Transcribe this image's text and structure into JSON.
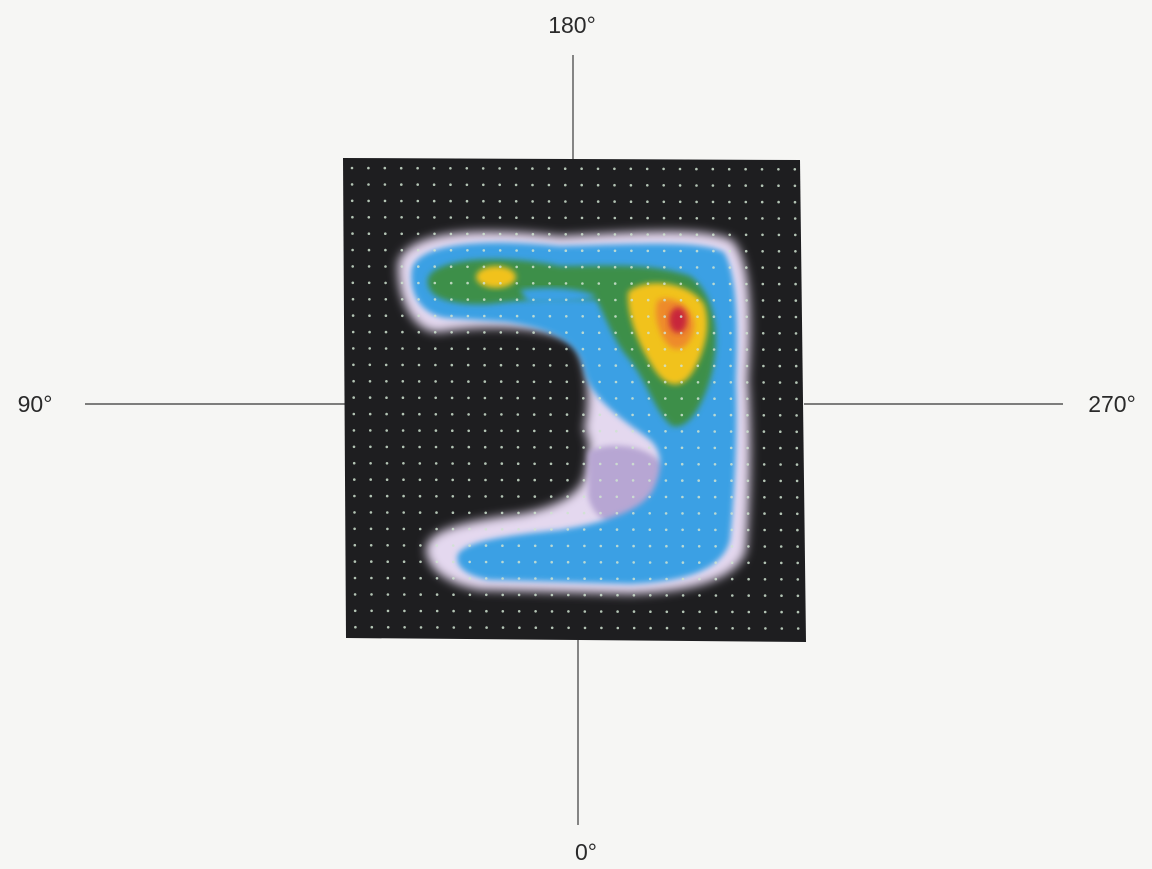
{
  "chart_data": {
    "type": "heatmap",
    "axes": {
      "top_label": "180°",
      "bottom_label": "0°",
      "left_label": "90°",
      "right_label": "270°"
    },
    "grid": true,
    "colors": {
      "background": "#1e1e20",
      "grid_dot": "#cfe3d0",
      "halo": "#e4d8ef",
      "level_1": "#3ba0e4",
      "level_2": "#3c8f4a",
      "level_3": "#f1c21b",
      "peak": "#c8283a"
    }
  }
}
